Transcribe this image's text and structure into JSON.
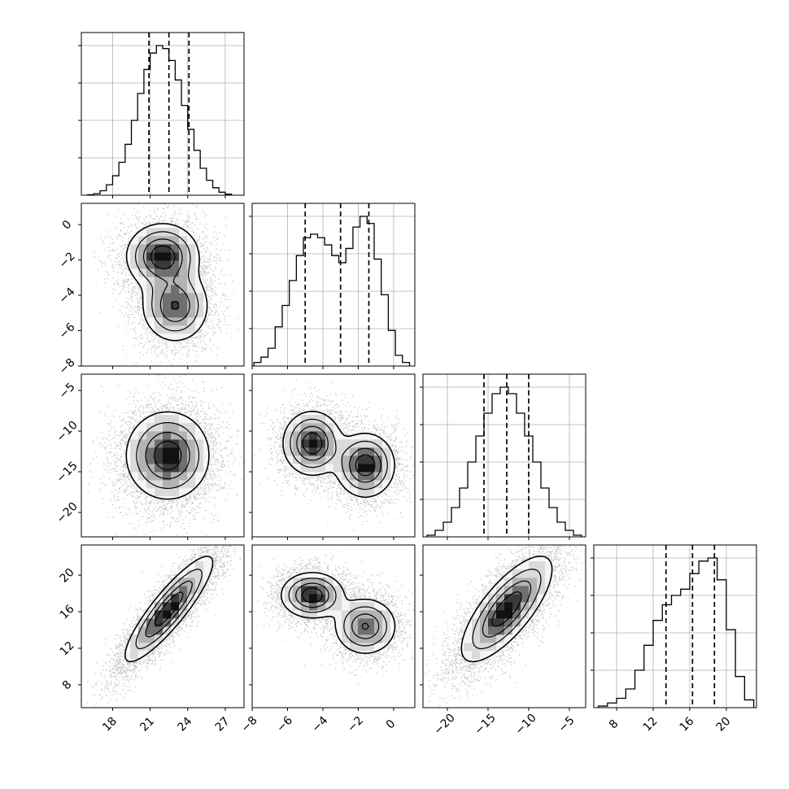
{
  "chart_data": {
    "type": "corner",
    "grid": true,
    "quantile_lines": "dashed",
    "parameters": [
      {
        "range": [
          15.5,
          28.5
        ],
        "ticks": [
          18,
          21,
          24,
          27
        ],
        "tick_labels": [
          "18",
          "21",
          "24",
          "27"
        ],
        "quantiles": [
          20.9,
          22.5,
          24.1
        ]
      },
      {
        "range": [
          -8,
          1.2
        ],
        "ticks": [
          -8,
          -6,
          -4,
          -2,
          0
        ],
        "tick_labels": [
          "−8",
          "−6",
          "−4",
          "−2",
          "0"
        ],
        "quantiles": [
          -5.0,
          -3.0,
          -1.4
        ]
      },
      {
        "range": [
          -23,
          -3
        ],
        "ticks": [
          -20,
          -15,
          -10,
          -5
        ],
        "tick_labels": [
          "−20",
          "−15",
          "−10",
          "−5"
        ],
        "quantiles": [
          -15.5,
          -12.7,
          -10.0
        ]
      },
      {
        "range": [
          5.5,
          23.3
        ],
        "ticks": [
          8,
          12,
          16,
          20
        ],
        "tick_labels": [
          "8",
          "12",
          "16",
          "20"
        ],
        "quantiles": [
          13.4,
          16.3,
          18.7
        ]
      }
    ],
    "histograms": [
      {
        "bin_edges": [
          16,
          16.5,
          17,
          17.5,
          18,
          18.5,
          19,
          19.5,
          20,
          20.5,
          21,
          21.5,
          22,
          22.5,
          23,
          23.5,
          24,
          24.5,
          25,
          25.5,
          26,
          26.5,
          27,
          27.5
        ],
        "counts": [
          0.003,
          0.01,
          0.03,
          0.07,
          0.13,
          0.22,
          0.34,
          0.5,
          0.68,
          0.84,
          0.95,
          1.0,
          0.98,
          0.9,
          0.77,
          0.6,
          0.44,
          0.3,
          0.18,
          0.1,
          0.05,
          0.02,
          0.007
        ]
      },
      {
        "bin_edges": [
          -7.9,
          -7.5,
          -7.1,
          -6.7,
          -6.3,
          -5.9,
          -5.5,
          -5.1,
          -4.7,
          -4.3,
          -3.9,
          -3.5,
          -3.1,
          -2.7,
          -2.3,
          -1.9,
          -1.5,
          -1.1,
          -0.7,
          -0.3,
          0.1,
          0.5,
          0.9
        ],
        "counts": [
          0.02,
          0.05,
          0.1,
          0.22,
          0.34,
          0.48,
          0.62,
          0.72,
          0.74,
          0.72,
          0.68,
          0.62,
          0.58,
          0.66,
          0.78,
          0.84,
          0.8,
          0.6,
          0.4,
          0.2,
          0.06,
          0.02
        ]
      },
      {
        "bin_edges": [
          -22.5,
          -21.5,
          -20.5,
          -19.5,
          -18.5,
          -17.5,
          -16.5,
          -15.5,
          -14.5,
          -13.5,
          -12.5,
          -11.5,
          -10.5,
          -9.5,
          -8.5,
          -7.5,
          -6.5,
          -5.5,
          -4.5,
          -3.5
        ],
        "counts": [
          0.01,
          0.04,
          0.09,
          0.18,
          0.3,
          0.46,
          0.62,
          0.76,
          0.88,
          0.92,
          0.88,
          0.76,
          0.62,
          0.46,
          0.3,
          0.18,
          0.09,
          0.04,
          0.01
        ]
      },
      {
        "bin_edges": [
          6,
          7,
          8,
          9,
          10,
          11,
          12,
          13,
          14,
          15,
          16,
          17,
          18,
          19,
          20,
          21,
          22,
          23
        ],
        "counts": [
          0.01,
          0.03,
          0.06,
          0.12,
          0.24,
          0.4,
          0.56,
          0.66,
          0.72,
          0.76,
          0.86,
          0.94,
          0.96,
          0.82,
          0.5,
          0.2,
          0.05
        ]
      }
    ],
    "pairs": [
      {
        "x_param": 0,
        "y_param": 1,
        "modes": [
          {
            "x": 22.0,
            "y": -1.8,
            "sx": 1.4,
            "sy": 0.9,
            "w": 0.55
          },
          {
            "x": 23.0,
            "y": -4.6,
            "sx": 1.3,
            "sy": 1.0,
            "w": 0.45
          }
        ]
      },
      {
        "x_param": 0,
        "y_param": 2,
        "modes": [
          {
            "x": 22.4,
            "y": -13.0,
            "sx": 1.6,
            "sy": 2.6,
            "w": 1.0
          }
        ]
      },
      {
        "x_param": 1,
        "y_param": 2,
        "modes": [
          {
            "x": -4.6,
            "y": -11.5,
            "sx": 0.8,
            "sy": 1.9,
            "w": 0.5
          },
          {
            "x": -1.6,
            "y": -14.2,
            "sx": 0.8,
            "sy": 1.9,
            "w": 0.5
          }
        ]
      },
      {
        "x_param": 0,
        "y_param": 3,
        "modes": [
          {
            "x": 22.5,
            "y": 16.3,
            "sx": 1.7,
            "sy": 2.8,
            "rho": 0.88,
            "w": 1.0
          }
        ]
      },
      {
        "x_param": 1,
        "y_param": 3,
        "modes": [
          {
            "x": -4.6,
            "y": 17.8,
            "sx": 0.85,
            "sy": 1.2,
            "w": 0.55
          },
          {
            "x": -1.6,
            "y": 14.4,
            "sx": 0.85,
            "sy": 1.5,
            "w": 0.45
          }
        ]
      },
      {
        "x_param": 2,
        "y_param": 3,
        "modes": [
          {
            "x": -12.7,
            "y": 16.3,
            "sx": 2.7,
            "sy": 2.8,
            "rho": 0.75,
            "w": 1.0
          }
        ]
      }
    ],
    "contour_levels": [
      0.12,
      0.3,
      0.55,
      0.8
    ]
  }
}
